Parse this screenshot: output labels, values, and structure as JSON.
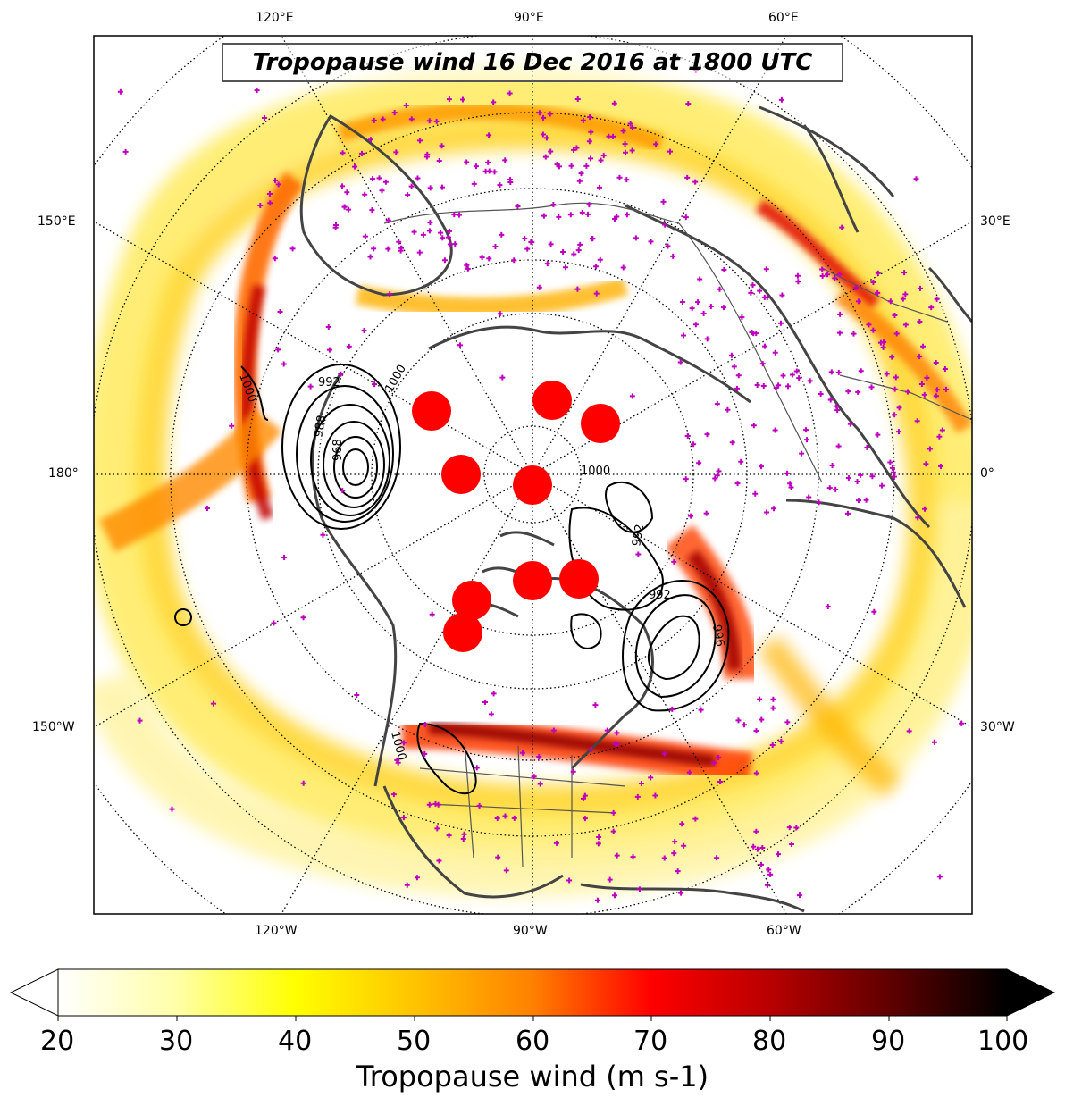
{
  "title": "Tropopause wind 16 Dec 2016 at 1800 UTC",
  "lon_labels": {
    "top": [
      "120°E",
      "90°E",
      "60°E"
    ],
    "left": [
      "150°E",
      "180°",
      "150°W"
    ],
    "right": [
      "30°E",
      "0°",
      "30°W"
    ],
    "bottom": [
      "120°W",
      "90°W",
      "60°W"
    ]
  },
  "contour_labels": [
    "1000",
    "992",
    "988",
    "968",
    "1000",
    "1000",
    "992",
    "992",
    "996",
    "1000"
  ],
  "markers": {
    "station_symbol": "plus-magenta",
    "station_color": "#c000c0",
    "red_dot_color": "#ff0000"
  },
  "colorbar": {
    "label": "Tropopause wind (m s-1)",
    "ticks": [
      "20",
      "30",
      "40",
      "50",
      "60",
      "70",
      "80",
      "90",
      "100"
    ],
    "min": 20,
    "max": 100,
    "extend": "both",
    "colormap": "hot_r"
  }
}
